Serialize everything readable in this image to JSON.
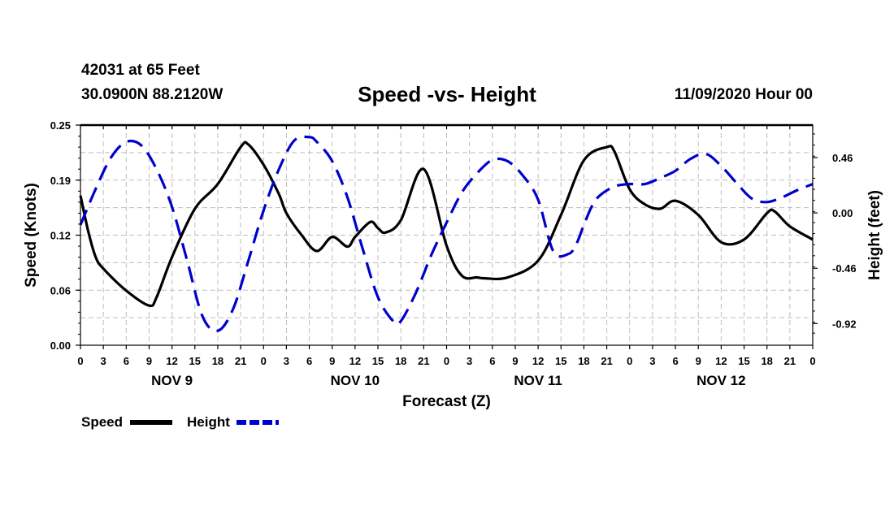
{
  "header": {
    "station": "42031 at 65 Feet",
    "coords": "30.0900N 88.2120W",
    "title": "Speed -vs- Height",
    "run": "11/09/2020 Hour 00"
  },
  "chart_data": {
    "type": "line",
    "title": "Speed -vs- Height",
    "xlabel": "Forecast (Z)",
    "ylabel_left": "Speed (Knots)",
    "ylabel_right": "Height (feet)",
    "x_unit": "forecast hour",
    "xlim": [
      0,
      96
    ],
    "ylim_left": [
      0.0,
      0.25
    ],
    "ylim_right": [
      -1.1,
      0.73
    ],
    "left_ticks": [
      "0.00",
      "0.06",
      "0.12",
      "0.19",
      "0.25"
    ],
    "left_tick_values": [
      0.0,
      0.0625,
      0.125,
      0.1875,
      0.25
    ],
    "right_ticks": [
      "0.46",
      "0.00",
      "-0.46",
      "-0.92"
    ],
    "right_tick_values": [
      0.46,
      0.0,
      -0.46,
      -0.92
    ],
    "x_ticks": [
      "0",
      "3",
      "6",
      "9",
      "12",
      "15",
      "18",
      "21",
      "0",
      "3",
      "6",
      "9",
      "12",
      "15",
      "18",
      "21",
      "0",
      "3",
      "6",
      "9",
      "12",
      "15",
      "18",
      "21",
      "0",
      "3",
      "6",
      "9",
      "12",
      "15",
      "18",
      "21",
      "0"
    ],
    "day_labels": [
      {
        "text": "NOV 9",
        "hour": 12
      },
      {
        "text": "NOV 10",
        "hour": 36
      },
      {
        "text": "NOV 11",
        "hour": 60
      },
      {
        "text": "NOV 12",
        "hour": 84
      }
    ],
    "grid": true,
    "legend": [
      {
        "name": "Speed",
        "color": "#000000",
        "style": "solid"
      },
      {
        "name": "Height",
        "color": "#0000cc",
        "style": "dashed"
      }
    ],
    "series": [
      {
        "name": "Speed",
        "axis": "left",
        "color": "#000000",
        "style": "solid",
        "x": [
          0,
          1,
          2,
          3,
          6,
          9,
          10,
          12,
          15,
          18,
          21,
          22,
          24,
          26,
          27,
          29,
          31,
          33,
          35,
          36,
          38,
          39,
          40,
          42,
          45,
          48,
          50,
          52,
          53,
          56,
          60,
          63,
          66,
          69,
          70,
          72,
          74,
          76,
          78,
          81,
          84,
          87,
          90,
          91,
          93,
          96
        ],
        "values": [
          0.17,
          0.13,
          0.1,
          0.087,
          0.062,
          0.045,
          0.055,
          0.1,
          0.155,
          0.183,
          0.225,
          0.228,
          0.205,
          0.172,
          0.15,
          0.125,
          0.107,
          0.123,
          0.112,
          0.123,
          0.14,
          0.133,
          0.128,
          0.142,
          0.2,
          0.113,
          0.079,
          0.077,
          0.076,
          0.077,
          0.096,
          0.148,
          0.21,
          0.225,
          0.22,
          0.177,
          0.16,
          0.155,
          0.164,
          0.148,
          0.117,
          0.12,
          0.15,
          0.152,
          0.135,
          0.12
        ]
      },
      {
        "name": "Height",
        "axis": "right",
        "color": "#0000cc",
        "style": "dashed",
        "x": [
          0,
          2,
          4,
          6,
          8,
          10,
          12,
          14,
          16,
          18,
          20,
          22,
          24,
          26,
          28,
          30,
          31,
          33,
          35,
          37,
          39,
          41,
          42,
          44,
          46,
          48,
          50,
          52,
          54,
          56,
          58,
          60,
          62,
          64,
          65,
          66,
          67,
          68,
          70,
          72,
          74,
          76,
          78,
          80,
          82,
          84,
          86,
          88,
          90,
          92,
          94,
          96
        ],
        "values": [
          -0.1,
          0.2,
          0.46,
          0.59,
          0.56,
          0.36,
          0.05,
          -0.4,
          -0.86,
          -0.98,
          -0.8,
          -0.4,
          0.02,
          0.36,
          0.6,
          0.63,
          0.59,
          0.43,
          0.13,
          -0.3,
          -0.7,
          -0.9,
          -0.9,
          -0.66,
          -0.35,
          -0.08,
          0.17,
          0.33,
          0.44,
          0.43,
          0.31,
          0.11,
          -0.32,
          -0.34,
          -0.26,
          -0.1,
          0.05,
          0.14,
          0.22,
          0.24,
          0.24,
          0.29,
          0.35,
          0.45,
          0.49,
          0.39,
          0.25,
          0.12,
          0.09,
          0.13,
          0.19,
          0.24
        ]
      }
    ]
  }
}
